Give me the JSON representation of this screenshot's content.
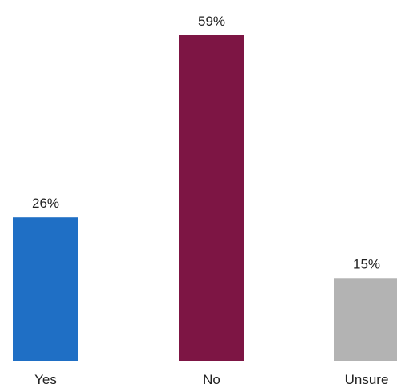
{
  "chart_data": {
    "type": "bar",
    "categories": [
      "Yes",
      "No",
      "Unsure"
    ],
    "values": [
      26,
      59,
      15
    ],
    "value_labels": [
      "26%",
      "59%",
      "15%"
    ],
    "unit": "%",
    "ylim": [
      0,
      59
    ],
    "colors": [
      "#1f6fc5",
      "#7d1544",
      "#b3b3b3"
    ],
    "title": "",
    "xlabel": "",
    "ylabel": "",
    "grid": false,
    "legend": "none"
  }
}
